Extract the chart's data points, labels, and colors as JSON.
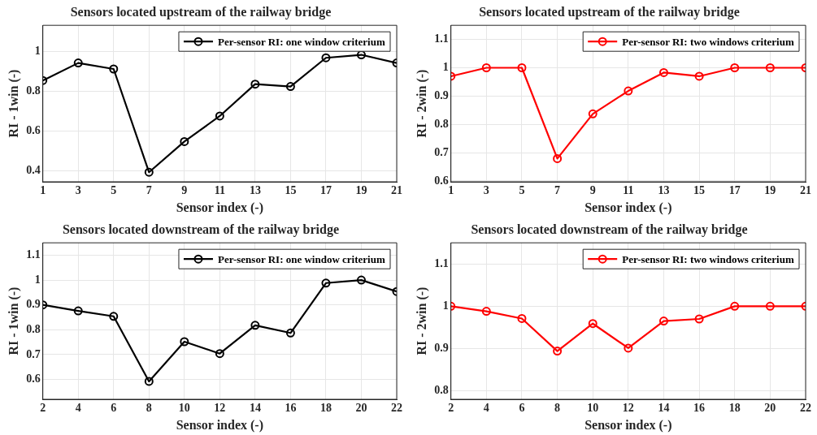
{
  "chart_data": [
    {
      "type": "line",
      "title": "Sensors located upstream of the railway bridge",
      "xlabel": "Sensor index (-)",
      "ylabel": "RI - 1win (-)",
      "x": [
        1,
        3,
        5,
        7,
        9,
        11,
        13,
        15,
        17,
        19,
        21
      ],
      "series": [
        {
          "name": "Per-sensor RI: one window criterium",
          "color": "#000000",
          "values": [
            0.853,
            0.941,
            0.911,
            0.393,
            0.547,
            0.675,
            0.835,
            0.823,
            0.967,
            0.982,
            0.941
          ]
        }
      ],
      "xlim": [
        1,
        21
      ],
      "xticks": [
        1,
        3,
        5,
        7,
        9,
        11,
        13,
        15,
        17,
        19,
        21
      ],
      "ylim": [
        0.345,
        1.13
      ],
      "yticks": [
        0.4,
        0.6,
        0.8,
        1
      ],
      "grid": true,
      "legend": "top right",
      "marker": "circle",
      "line_style": "solid"
    },
    {
      "type": "line",
      "title": "Sensors located upstream of the railway bridge",
      "xlabel": "Sensor index (-)",
      "ylabel": "RI - 2win (-)",
      "x": [
        1,
        3,
        5,
        7,
        9,
        11,
        13,
        15,
        17,
        19,
        21
      ],
      "series": [
        {
          "name": "Per-sensor RI: two windows criterium",
          "color": "#ff0000",
          "values": [
            0.97,
            1,
            1,
            0.679,
            0.837,
            0.918,
            0.983,
            0.97,
            1,
            1,
            1
          ]
        }
      ],
      "xlim": [
        1,
        21
      ],
      "xticks": [
        1,
        3,
        5,
        7,
        9,
        11,
        13,
        15,
        17,
        19,
        21
      ],
      "ylim": [
        0.597,
        1.15
      ],
      "yticks": [
        0.6,
        0.7,
        0.8,
        0.9,
        1,
        1.1
      ],
      "grid": true,
      "legend": "top right",
      "marker": "circle",
      "line_style": "solid"
    },
    {
      "type": "line",
      "title": "Sensors located downstream of the railway bridge",
      "xlabel": "Sensor index (-)",
      "ylabel": "RI - 1win (-)",
      "x": [
        2,
        4,
        6,
        8,
        10,
        12,
        14,
        16,
        18,
        20,
        22
      ],
      "series": [
        {
          "name": "Per-sensor RI: one window criterium",
          "color": "#000000",
          "values": [
            0.9,
            0.876,
            0.854,
            0.592,
            0.752,
            0.704,
            0.818,
            0.787,
            0.988,
            1,
            0.954
          ]
        }
      ],
      "xlim": [
        2,
        22
      ],
      "xticks": [
        2,
        4,
        6,
        8,
        10,
        12,
        14,
        16,
        18,
        20,
        22
      ],
      "ylim": [
        0.52,
        1.15
      ],
      "yticks": [
        0.6,
        0.7,
        0.8,
        0.9,
        1,
        1.1
      ],
      "grid": true,
      "legend": "top right",
      "marker": "circle",
      "line_style": "solid"
    },
    {
      "type": "line",
      "title": "Sensors located downstream of the railway bridge",
      "xlabel": "Sensor index (-)",
      "ylabel": "RI - 2win (-)",
      "x": [
        2,
        4,
        6,
        8,
        10,
        12,
        14,
        16,
        18,
        20,
        22
      ],
      "series": [
        {
          "name": "Per-sensor RI: two windows criterium",
          "color": "#ff0000",
          "values": [
            1,
            0.988,
            0.971,
            0.894,
            0.959,
            0.901,
            0.965,
            0.97,
            1,
            1,
            1
          ]
        }
      ],
      "xlim": [
        2,
        22
      ],
      "xticks": [
        2,
        4,
        6,
        8,
        10,
        12,
        14,
        16,
        18,
        20,
        22
      ],
      "ylim": [
        0.78,
        1.15
      ],
      "yticks": [
        0.8,
        0.9,
        1,
        1.1
      ],
      "grid": true,
      "legend": "top right",
      "marker": "circle",
      "line_style": "solid"
    }
  ]
}
